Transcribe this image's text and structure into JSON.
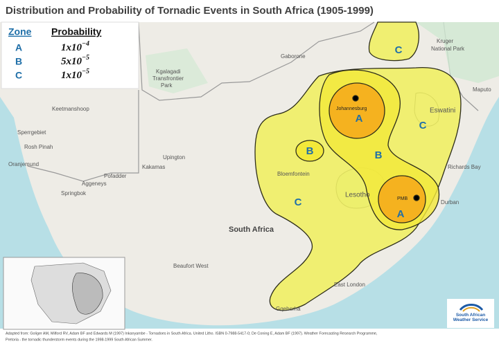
{
  "header": {
    "title": "Distribution and Probability of Tornadic Events in South Africa (1905-1999)"
  },
  "legend": {
    "headers": [
      "Zone",
      "Probability"
    ],
    "rows": [
      {
        "zone": "A",
        "base": "1x10",
        "exponent": "−4"
      },
      {
        "zone": "B",
        "base": "5x10",
        "exponent": "−5"
      },
      {
        "zone": "C",
        "base": "1x10",
        "exponent": "−5"
      }
    ]
  },
  "zone_labels": [
    "C",
    "A",
    "B",
    "B",
    "C",
    "C",
    "A"
  ],
  "place_labels": [
    "Gaborone",
    "Kruger",
    "National Park",
    "Kgalagadi",
    "Transfrontier",
    "Park",
    "Keetmanshoop",
    "Sperrgebiet",
    "Rosh Pinah",
    "Oranjemund",
    "Springbok",
    "Aggeneys",
    "Pofadder",
    "Kakamas",
    "Upington",
    "Johannesburg",
    "PMB",
    "Durban",
    "Bloemfontein",
    "Lesotho",
    "Eswatini",
    "Maputo",
    "Richards Bay",
    "South Africa",
    "Beaufort West",
    "East London",
    "Gqeberha"
  ],
  "logo": "South African Weather Service",
  "footer": [
    "Adapted from: Goliger AM, Milford RV, Adam BF and Edwards M (1997) Inkanyambe - Tornadoes in South Africa. United Litho. ISBN 0-7988-5417-0; De Coning E, Adam BF (1997). Weather Forecasting Research Programme,",
    "Pretoria - the tornadic thunderstorm events during the 1998-1999 South African Summer."
  ]
}
